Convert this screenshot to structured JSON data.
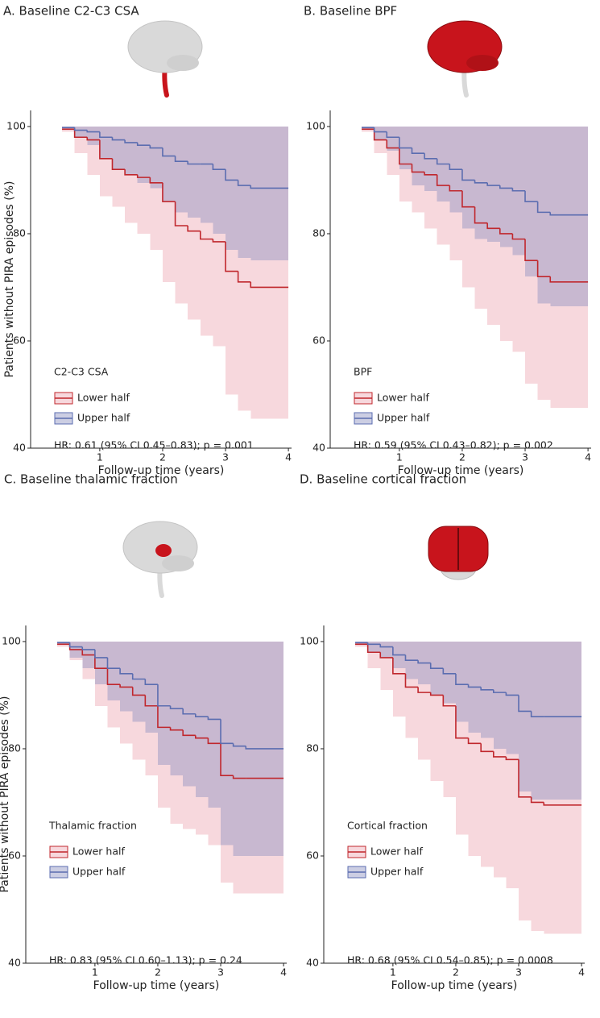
{
  "chart_data": [
    {
      "type": "line",
      "step": "post",
      "title": "A. Baseline C2-C3 CSA",
      "ylabel": "Patients without PIRA episodes (%)",
      "xlabel": "Follow-up time (years)",
      "legend_title": "C2-C3 CSA",
      "annotation": "HR: 0.61 (95% CI 0.45–0.83); p = 0.001",
      "xlim": [
        -0.1,
        4.05
      ],
      "ylim": [
        40,
        103
      ],
      "xticks": [
        1,
        2,
        3,
        4
      ],
      "yticks": [
        40,
        60,
        80,
        100
      ],
      "x": [
        0.4,
        0.6,
        0.8,
        1.0,
        1.2,
        1.4,
        1.6,
        1.8,
        2.0,
        2.2,
        2.4,
        2.6,
        2.8,
        3.0,
        3.2,
        3.4,
        4.0
      ],
      "series": [
        {
          "name": "Lower half",
          "color": "#c0272d",
          "band_color": "#eea9b3",
          "values": [
            99.5,
            98,
            97.5,
            94,
            92,
            91,
            90.5,
            89.5,
            86,
            81.5,
            80.5,
            79,
            78.5,
            73,
            71,
            70,
            70
          ],
          "lower": [
            99,
            95,
            91,
            87,
            85,
            82,
            80,
            77,
            71,
            67,
            64,
            61,
            59,
            50,
            47,
            45.5,
            45.5
          ],
          "upper": [
            100,
            100,
            100,
            100,
            100,
            100,
            100,
            100,
            100,
            100,
            100,
            100,
            100,
            100,
            100,
            100,
            100
          ]
        },
        {
          "name": "Upper half",
          "color": "#5b6db0",
          "band_color": "#8e93c2",
          "values": [
            99.8,
            99.3,
            99,
            98,
            97.5,
            97,
            96.5,
            96,
            94.5,
            93.5,
            93,
            93,
            92,
            90,
            89,
            88.5,
            88.5
          ],
          "lower": [
            99.5,
            98,
            96.5,
            94,
            92,
            91,
            89.5,
            88.5,
            86,
            84,
            83,
            82,
            80,
            77,
            75.5,
            75,
            75
          ],
          "upper": [
            100,
            100,
            100,
            100,
            100,
            100,
            100,
            100,
            100,
            100,
            100,
            100,
            100,
            100,
            100,
            100,
            100
          ]
        }
      ]
    },
    {
      "type": "line",
      "step": "post",
      "title": "B. Baseline BPF",
      "xlabel": "Follow-up time (years)",
      "legend_title": "BPF",
      "annotation": "HR: 0.59 (95% CI 0.43–0.82); p = 0.002",
      "xlim": [
        -0.1,
        4.05
      ],
      "ylim": [
        40,
        103
      ],
      "xticks": [
        1,
        2,
        3,
        4
      ],
      "yticks": [
        40,
        60,
        80,
        100
      ],
      "x": [
        0.4,
        0.6,
        0.8,
        1.0,
        1.2,
        1.4,
        1.6,
        1.8,
        2.0,
        2.2,
        2.4,
        2.6,
        2.8,
        3.0,
        3.2,
        3.4,
        4.0
      ],
      "series": [
        {
          "name": "Lower half",
          "color": "#c0272d",
          "band_color": "#eea9b3",
          "values": [
            99.5,
            97.5,
            96,
            93,
            91.5,
            91,
            89,
            88,
            85,
            82,
            81,
            80,
            79,
            75,
            72,
            71,
            71
          ],
          "lower": [
            99,
            95,
            91,
            86,
            84,
            81,
            78,
            75,
            70,
            66,
            63,
            60,
            58,
            52,
            49,
            47.5,
            47.5
          ],
          "upper": [
            100,
            100,
            100,
            100,
            100,
            100,
            100,
            100,
            100,
            100,
            100,
            100,
            100,
            100,
            100,
            100,
            100
          ]
        },
        {
          "name": "Upper half",
          "color": "#5b6db0",
          "band_color": "#8e93c2",
          "values": [
            99.8,
            99,
            98,
            96,
            95,
            94,
            93,
            92,
            90,
            89.5,
            89,
            88.5,
            88,
            86,
            84,
            83.5,
            83.5
          ],
          "lower": [
            99.5,
            97.5,
            95.5,
            92,
            89,
            88,
            86,
            84,
            81,
            79,
            78.5,
            77.5,
            76,
            72,
            67,
            66.5,
            66.5
          ],
          "upper": [
            100,
            100,
            100,
            100,
            100,
            100,
            100,
            100,
            100,
            100,
            100,
            100,
            100,
            100,
            100,
            100,
            100
          ]
        }
      ]
    },
    {
      "type": "line",
      "step": "post",
      "title": "C. Baseline thalamic fraction",
      "ylabel": "Patients without PIRA episodes (%)",
      "xlabel": "Follow-up time (years)",
      "legend_title": "Thalamic fraction",
      "annotation": "HR: 0.83 (95% CI 0.60–1.13); p = 0.24",
      "xlim": [
        -0.1,
        4.05
      ],
      "ylim": [
        40,
        103
      ],
      "xticks": [
        1,
        2,
        3,
        4
      ],
      "yticks": [
        40,
        60,
        80,
        100
      ],
      "x": [
        0.4,
        0.6,
        0.8,
        1.0,
        1.2,
        1.4,
        1.6,
        1.8,
        2.0,
        2.2,
        2.4,
        2.6,
        2.8,
        3.0,
        3.2,
        3.4,
        4.0
      ],
      "series": [
        {
          "name": "Lower half",
          "color": "#c0272d",
          "band_color": "#eea9b3",
          "values": [
            99.5,
            98.5,
            97.5,
            95,
            92,
            91.5,
            90,
            88,
            84,
            83.5,
            82.5,
            82,
            81,
            75,
            74.5,
            74.5,
            74.5
          ],
          "lower": [
            99,
            96.5,
            93,
            88,
            84,
            81,
            78,
            75,
            69,
            66,
            65,
            64,
            62,
            55,
            53,
            53,
            53
          ],
          "upper": [
            100,
            100,
            100,
            100,
            100,
            100,
            100,
            100,
            100,
            100,
            100,
            100,
            100,
            100,
            100,
            100,
            100
          ]
        },
        {
          "name": "Upper half",
          "color": "#5b6db0",
          "band_color": "#8e93c2",
          "values": [
            99.8,
            99,
            98.5,
            97,
            95,
            94,
            93,
            92,
            88,
            87.5,
            86.5,
            86,
            85.5,
            81,
            80.5,
            80,
            80
          ],
          "lower": [
            99.5,
            97,
            95,
            92,
            89,
            87,
            85,
            83,
            77,
            75,
            73,
            71,
            69,
            62,
            60,
            60,
            60
          ],
          "upper": [
            100,
            100,
            100,
            100,
            100,
            100,
            100,
            100,
            100,
            100,
            100,
            100,
            100,
            100,
            100,
            100,
            100
          ]
        }
      ]
    },
    {
      "type": "line",
      "step": "post",
      "title": "D. Baseline cortical fraction",
      "xlabel": "Follow-up time (years)",
      "legend_title": "Cortical fraction",
      "annotation": "HR: 0.68 (95% CI 0.54–0.85); p = 0.0008",
      "xlim": [
        -0.1,
        4.05
      ],
      "ylim": [
        40,
        103
      ],
      "xticks": [
        1,
        2,
        3,
        4
      ],
      "yticks": [
        40,
        60,
        80,
        100
      ],
      "x": [
        0.4,
        0.6,
        0.8,
        1.0,
        1.2,
        1.4,
        1.6,
        1.8,
        2.0,
        2.2,
        2.4,
        2.6,
        2.8,
        3.0,
        3.2,
        3.4,
        4.0
      ],
      "series": [
        {
          "name": "Lower half",
          "color": "#c0272d",
          "band_color": "#eea9b3",
          "values": [
            99.5,
            98,
            97,
            94,
            91.5,
            90.5,
            90,
            88,
            82,
            81,
            79.5,
            78.5,
            78,
            71,
            70,
            69.5,
            69.5
          ],
          "lower": [
            99,
            95,
            91,
            86,
            82,
            78,
            74,
            71,
            64,
            60,
            58,
            56,
            54,
            48,
            46,
            45.5,
            45.5
          ],
          "upper": [
            100,
            100,
            100,
            100,
            100,
            100,
            100,
            100,
            100,
            100,
            100,
            100,
            100,
            100,
            100,
            100,
            100
          ]
        },
        {
          "name": "Upper half",
          "color": "#5b6db0",
          "band_color": "#8e93c2",
          "values": [
            99.8,
            99.5,
            99,
            97.5,
            96.5,
            96,
            95,
            94,
            92,
            91.5,
            91,
            90.5,
            90,
            87,
            86,
            86,
            86
          ],
          "lower": [
            99.5,
            98,
            97,
            95,
            93,
            92,
            90,
            88.5,
            85,
            83,
            82,
            80,
            79,
            72,
            70.5,
            70.5,
            70.5
          ],
          "upper": [
            100,
            100,
            100,
            100,
            100,
            100,
            100,
            100,
            100,
            100,
            100,
            100,
            100,
            100,
            100,
            100,
            100
          ]
        }
      ]
    }
  ]
}
